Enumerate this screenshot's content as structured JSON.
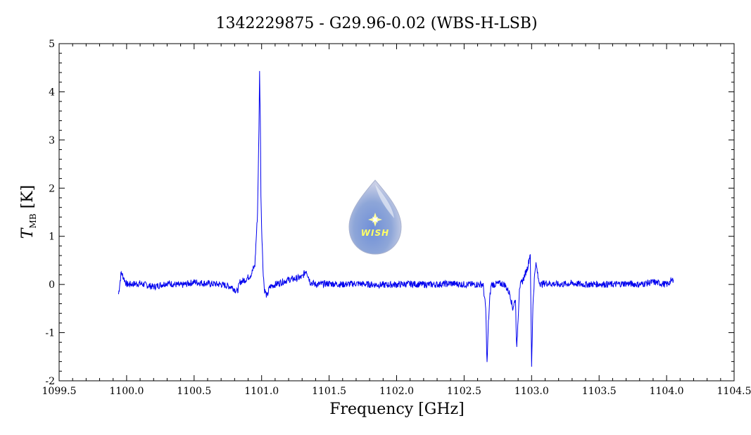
{
  "chart_data": {
    "type": "line",
    "title": "1342229875 - G29.96-0.02 (WBS-H-LSB)",
    "xlabel": "Frequency [GHz]",
    "ylabel_main": "T",
    "ylabel_sub": "MB",
    "ylabel_unit": " [K]",
    "xlim": [
      1099.5,
      1104.5
    ],
    "ylim": [
      -2,
      5
    ],
    "x_ticks": [
      "1099.5",
      "1100.0",
      "1100.5",
      "1101.0",
      "1101.5",
      "1102.0",
      "1102.5",
      "1103.0",
      "1103.5",
      "1104.0",
      "1104.5"
    ],
    "y_ticks": [
      "5",
      "4",
      "3",
      "2",
      "1",
      "0",
      "-1",
      "-2"
    ],
    "grid": false,
    "logo": {
      "text": "WISH"
    },
    "series": [
      {
        "color": "#0000ee",
        "x": [
          1099.94,
          1099.96,
          1100.0,
          1100.1,
          1100.2,
          1100.3,
          1100.4,
          1100.5,
          1100.6,
          1100.7,
          1100.78,
          1100.82,
          1100.84,
          1100.88,
          1100.92,
          1100.95,
          1100.97,
          1100.98,
          1100.985,
          1100.99,
          1100.995,
          1101.0,
          1101.01,
          1101.02,
          1101.04,
          1101.06,
          1101.1,
          1101.15,
          1101.2,
          1101.25,
          1101.3,
          1101.33,
          1101.36,
          1101.4,
          1101.5,
          1101.6,
          1101.7,
          1101.8,
          1101.9,
          1102.0,
          1102.1,
          1102.2,
          1102.3,
          1102.4,
          1102.5,
          1102.6,
          1102.64,
          1102.66,
          1102.67,
          1102.68,
          1102.69,
          1102.7,
          1102.72,
          1102.76,
          1102.8,
          1102.84,
          1102.86,
          1102.88,
          1102.89,
          1102.9,
          1102.91,
          1102.93,
          1102.95,
          1102.97,
          1102.99,
          1103.0,
          1103.01,
          1103.02,
          1103.03,
          1103.04,
          1103.05,
          1103.07,
          1103.1,
          1103.2,
          1103.3,
          1103.4,
          1103.5,
          1103.6,
          1103.7,
          1103.8,
          1103.9,
          1104.0,
          1104.05
        ],
        "y": [
          -0.2,
          0.25,
          0.0,
          0.02,
          -0.05,
          0.03,
          -0.02,
          0.05,
          0.02,
          0.0,
          -0.05,
          -0.15,
          0.05,
          0.1,
          0.2,
          0.4,
          1.5,
          3.2,
          4.4,
          3.5,
          1.9,
          1.2,
          0.35,
          -0.1,
          -0.25,
          -0.05,
          0.0,
          0.05,
          0.1,
          0.12,
          0.15,
          0.3,
          0.05,
          0.0,
          0.02,
          0.0,
          0.02,
          0.0,
          -0.01,
          0.0,
          0.01,
          0.0,
          0.0,
          0.02,
          0.0,
          0.0,
          0.0,
          -0.5,
          -1.65,
          -0.8,
          -0.3,
          0.0,
          0.0,
          0.02,
          0.0,
          -0.2,
          -0.5,
          -0.3,
          -1.35,
          -0.7,
          -0.05,
          0.05,
          0.2,
          0.35,
          0.65,
          -1.7,
          -0.4,
          0.1,
          0.45,
          0.3,
          0.1,
          0.0,
          0.03,
          0.0,
          0.02,
          0.0,
          0.01,
          0.0,
          0.02,
          0.0,
          0.05,
          0.0,
          0.1
        ]
      }
    ]
  }
}
